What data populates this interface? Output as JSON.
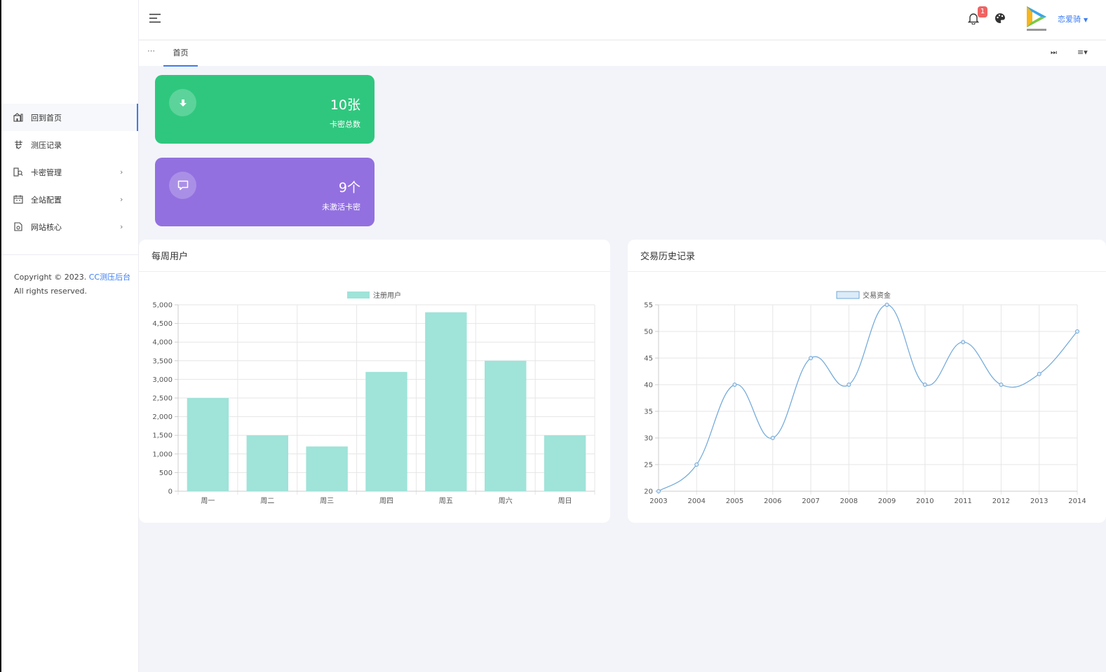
{
  "header": {
    "notification_count": "1",
    "username": "恋爱骑"
  },
  "sidebar": {
    "items": [
      {
        "label": "回到首页",
        "icon": "home-icon",
        "active": true,
        "arrow": ""
      },
      {
        "label": "测压记录",
        "icon": "record-icon",
        "active": false,
        "arrow": ""
      },
      {
        "label": "卡密管理",
        "icon": "card-search-icon",
        "active": false,
        "arrow": "›"
      },
      {
        "label": "全站配置",
        "icon": "calendar-icon",
        "active": false,
        "arrow": "›"
      },
      {
        "label": "网站核心",
        "icon": "document-icon",
        "active": false,
        "arrow": "›"
      }
    ],
    "copyright_prefix": "Copyright © 2023.",
    "copyright_brand": "CC测压后台",
    "copyright_suffix": "All rights reserved."
  },
  "tabs": {
    "prev_symbol": "⋯",
    "items": [
      {
        "label": "首页"
      }
    ],
    "next_symbol": "⏭",
    "menu_symbol": "≡▾"
  },
  "stats": [
    {
      "value": "10张",
      "label": "卡密总数",
      "icon": "download-icon",
      "color": "#2fc77e"
    },
    {
      "value": "9个",
      "label": "未激活卡密",
      "icon": "message-icon",
      "color": "#9370e0"
    }
  ],
  "cards": {
    "weekly_title": "每周用户",
    "history_title": "交易历史记录"
  },
  "chart_data": [
    {
      "type": "bar",
      "title": "",
      "categories": [
        "周一",
        "周二",
        "周三",
        "周四",
        "周五",
        "周六",
        "周日"
      ],
      "series": [
        {
          "name": "注册用户",
          "values": [
            2500,
            1500,
            1200,
            3200,
            4800,
            3500,
            1500
          ]
        }
      ],
      "ylim": [
        0,
        5000
      ],
      "yticks": [
        0,
        500,
        1000,
        1500,
        2000,
        2500,
        3000,
        3500,
        4000,
        4500,
        5000
      ],
      "ytick_labels": [
        "0",
        "500",
        "1,000",
        "1,500",
        "2,000",
        "2,500",
        "3,000",
        "3,500",
        "4,000",
        "4,500",
        "5,000"
      ],
      "grid": true,
      "legend": "top-center",
      "bar_color": "#9fe3d9"
    },
    {
      "type": "line",
      "title": "",
      "x": [
        "2003",
        "2004",
        "2005",
        "2006",
        "2007",
        "2008",
        "2009",
        "2010",
        "2011",
        "2012",
        "2013",
        "2014"
      ],
      "series": [
        {
          "name": "交易资金",
          "values": [
            20,
            25,
            40,
            30,
            45,
            40,
            55,
            40,
            48,
            40,
            42,
            50
          ]
        }
      ],
      "ylim": [
        20,
        55
      ],
      "yticks": [
        20,
        25,
        30,
        35,
        40,
        45,
        50,
        55
      ],
      "grid": true,
      "legend": "top-center",
      "line_color": "#6ea7d9"
    }
  ]
}
